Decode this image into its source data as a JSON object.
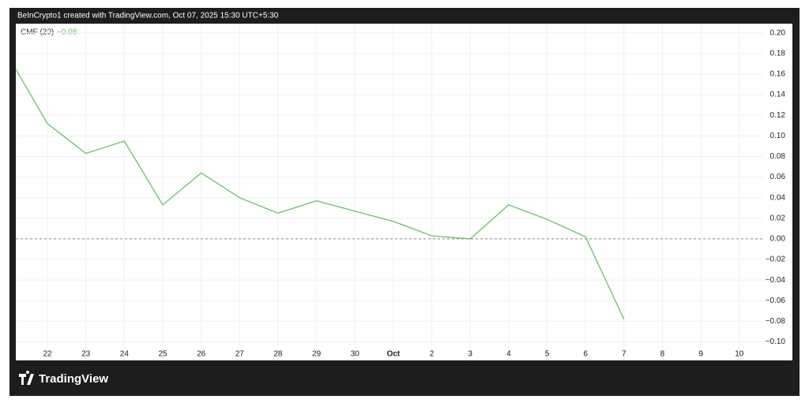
{
  "header": "BeInCrypto1 created with TradingView.com, Oct 07, 2025 15:30 UTC+5:30",
  "watermark": "TradingView",
  "chart_data": {
    "type": "line",
    "legend_label": "CMF (20)",
    "legend_value": "−0.08",
    "categories": [
      null,
      "22",
      "23",
      "24",
      "25",
      "26",
      "27",
      "28",
      "29",
      "30",
      "Oct",
      "2",
      "3",
      "4",
      "5",
      "6",
      "7",
      "8",
      "9",
      "10"
    ],
    "series": [
      {
        "color": "#6cbf6a",
        "values": [
          0.176,
          0.112,
          0.083,
          0.095,
          0.033,
          0.064,
          0.04,
          0.025,
          0.037,
          0.027,
          0.017,
          0.003,
          0.0,
          0.033,
          0.019,
          0.002,
          -0.078,
          null,
          null,
          null
        ]
      }
    ],
    "ylim": [
      -0.118,
      0.209
    ],
    "yticks": [
      {
        "value": 0.2,
        "label": "0.20"
      },
      {
        "value": 0.18,
        "label": "0.18"
      },
      {
        "value": 0.16,
        "label": "0.16"
      },
      {
        "value": 0.14,
        "label": "0.14"
      },
      {
        "value": 0.12,
        "label": "0.12"
      },
      {
        "value": 0.1,
        "label": "0.10"
      },
      {
        "value": 0.08,
        "label": "0.08"
      },
      {
        "value": 0.06,
        "label": "0.06"
      },
      {
        "value": 0.04,
        "label": "0.04"
      },
      {
        "value": 0.02,
        "label": "0.02"
      },
      {
        "value": 0,
        "label": "0.00"
      },
      {
        "value": -0.02,
        "label": "−0.02"
      },
      {
        "value": -0.04,
        "label": "−0.04"
      },
      {
        "value": -0.06,
        "label": "−0.06"
      },
      {
        "value": -0.08,
        "label": "−0.08"
      },
      {
        "value": -0.1,
        "label": "−0.10"
      }
    ],
    "grid": true,
    "zero_line": true
  }
}
